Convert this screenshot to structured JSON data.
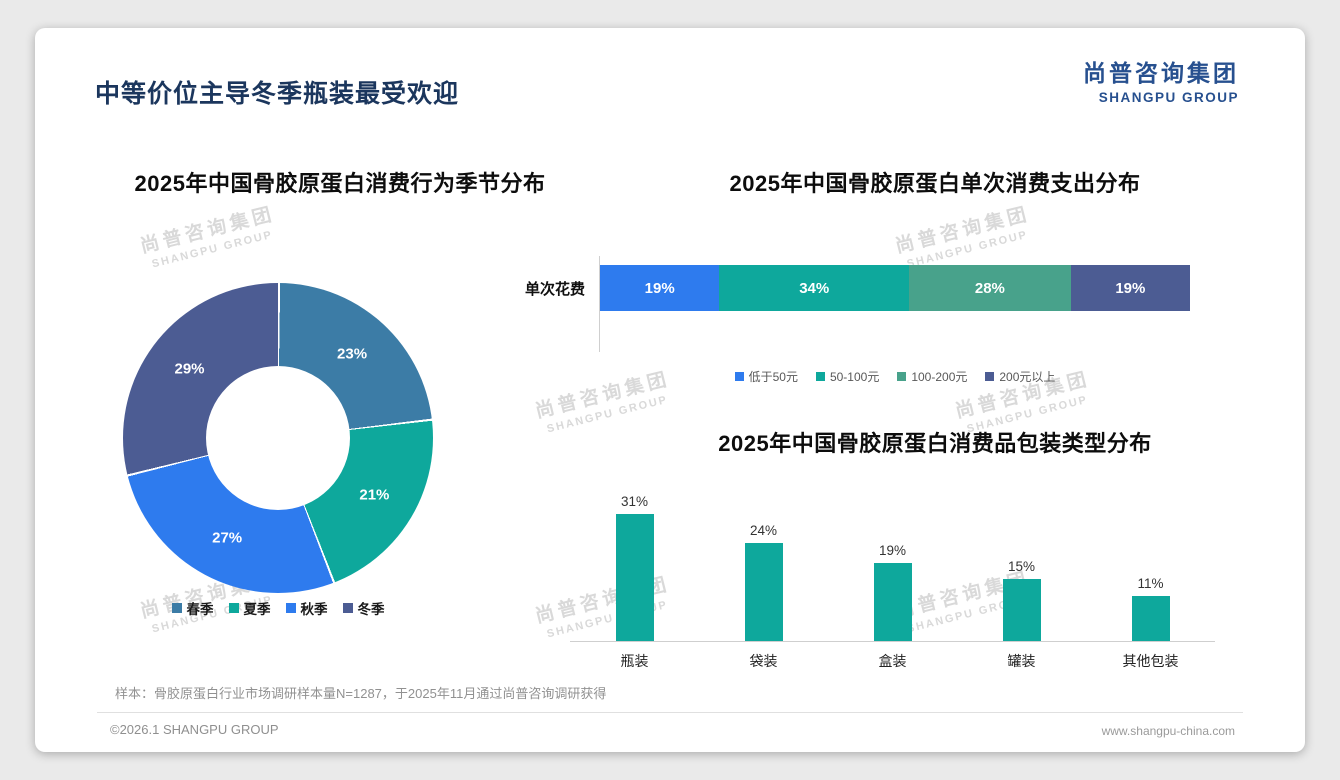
{
  "page": {
    "title": "中等价位主导冬季瓶装最受欢迎",
    "sample_note": "样本：骨胶原蛋白行业市场调研样本量N=1287，于2025年11月通过尚普咨询调研获得",
    "footer_left": "©2026.1 SHANGPU GROUP",
    "footer_right": "www.shangpu-china.com"
  },
  "logo": {
    "cn": "尚普咨询集团",
    "en": "SHANGPU GROUP"
  },
  "watermark": {
    "cn": "尚普咨询集团",
    "en": "SHANGPU GROUP"
  },
  "colors": {
    "title_navy": "#1b365d",
    "logo_navy": "#27508f",
    "teal": "#0ea89c",
    "bright_blue": "#2e7bee",
    "steel_blue": "#3c7ca6",
    "sea_green": "#48a28b",
    "slate_blue": "#4c5c93",
    "watermark_gray": "#d9d9d9"
  },
  "chart_data": [
    {
      "type": "pie",
      "subtype": "donut",
      "title": "2025年中国骨胶原蛋白消费行为季节分布",
      "categories": [
        "春季",
        "夏季",
        "秋季",
        "冬季"
      ],
      "values": [
        23,
        21,
        27,
        29
      ],
      "value_labels": [
        "23%",
        "21%",
        "27%",
        "29%"
      ],
      "colors": [
        "#3c7ca6",
        "#0ea89c",
        "#2e7bee",
        "#4c5c93"
      ],
      "legend_position": "bottom"
    },
    {
      "type": "bar",
      "subtype": "horizontal-stacked",
      "title": "2025年中国骨胶原蛋白单次消费支出分布",
      "row_label": "单次花费",
      "categories": [
        "低于50元",
        "50-100元",
        "100-200元",
        "200元以上"
      ],
      "values": [
        19,
        34,
        28,
        19
      ],
      "value_labels": [
        "19%",
        "34%",
        "28%",
        "19%"
      ],
      "colors": [
        "#2e7bee",
        "#0ea89c",
        "#48a28b",
        "#4c5c93"
      ],
      "legend_position": "bottom"
    },
    {
      "type": "bar",
      "subtype": "vertical",
      "title": "2025年中国骨胶原蛋白消费品包装类型分布",
      "categories": [
        "瓶装",
        "袋装",
        "盒装",
        "罐装",
        "其他包装"
      ],
      "values": [
        31,
        24,
        19,
        15,
        11
      ],
      "value_labels": [
        "31%",
        "24%",
        "19%",
        "15%",
        "11%"
      ],
      "bar_color": "#0ea89c",
      "ylim": [
        0,
        35
      ],
      "grid": false
    }
  ]
}
